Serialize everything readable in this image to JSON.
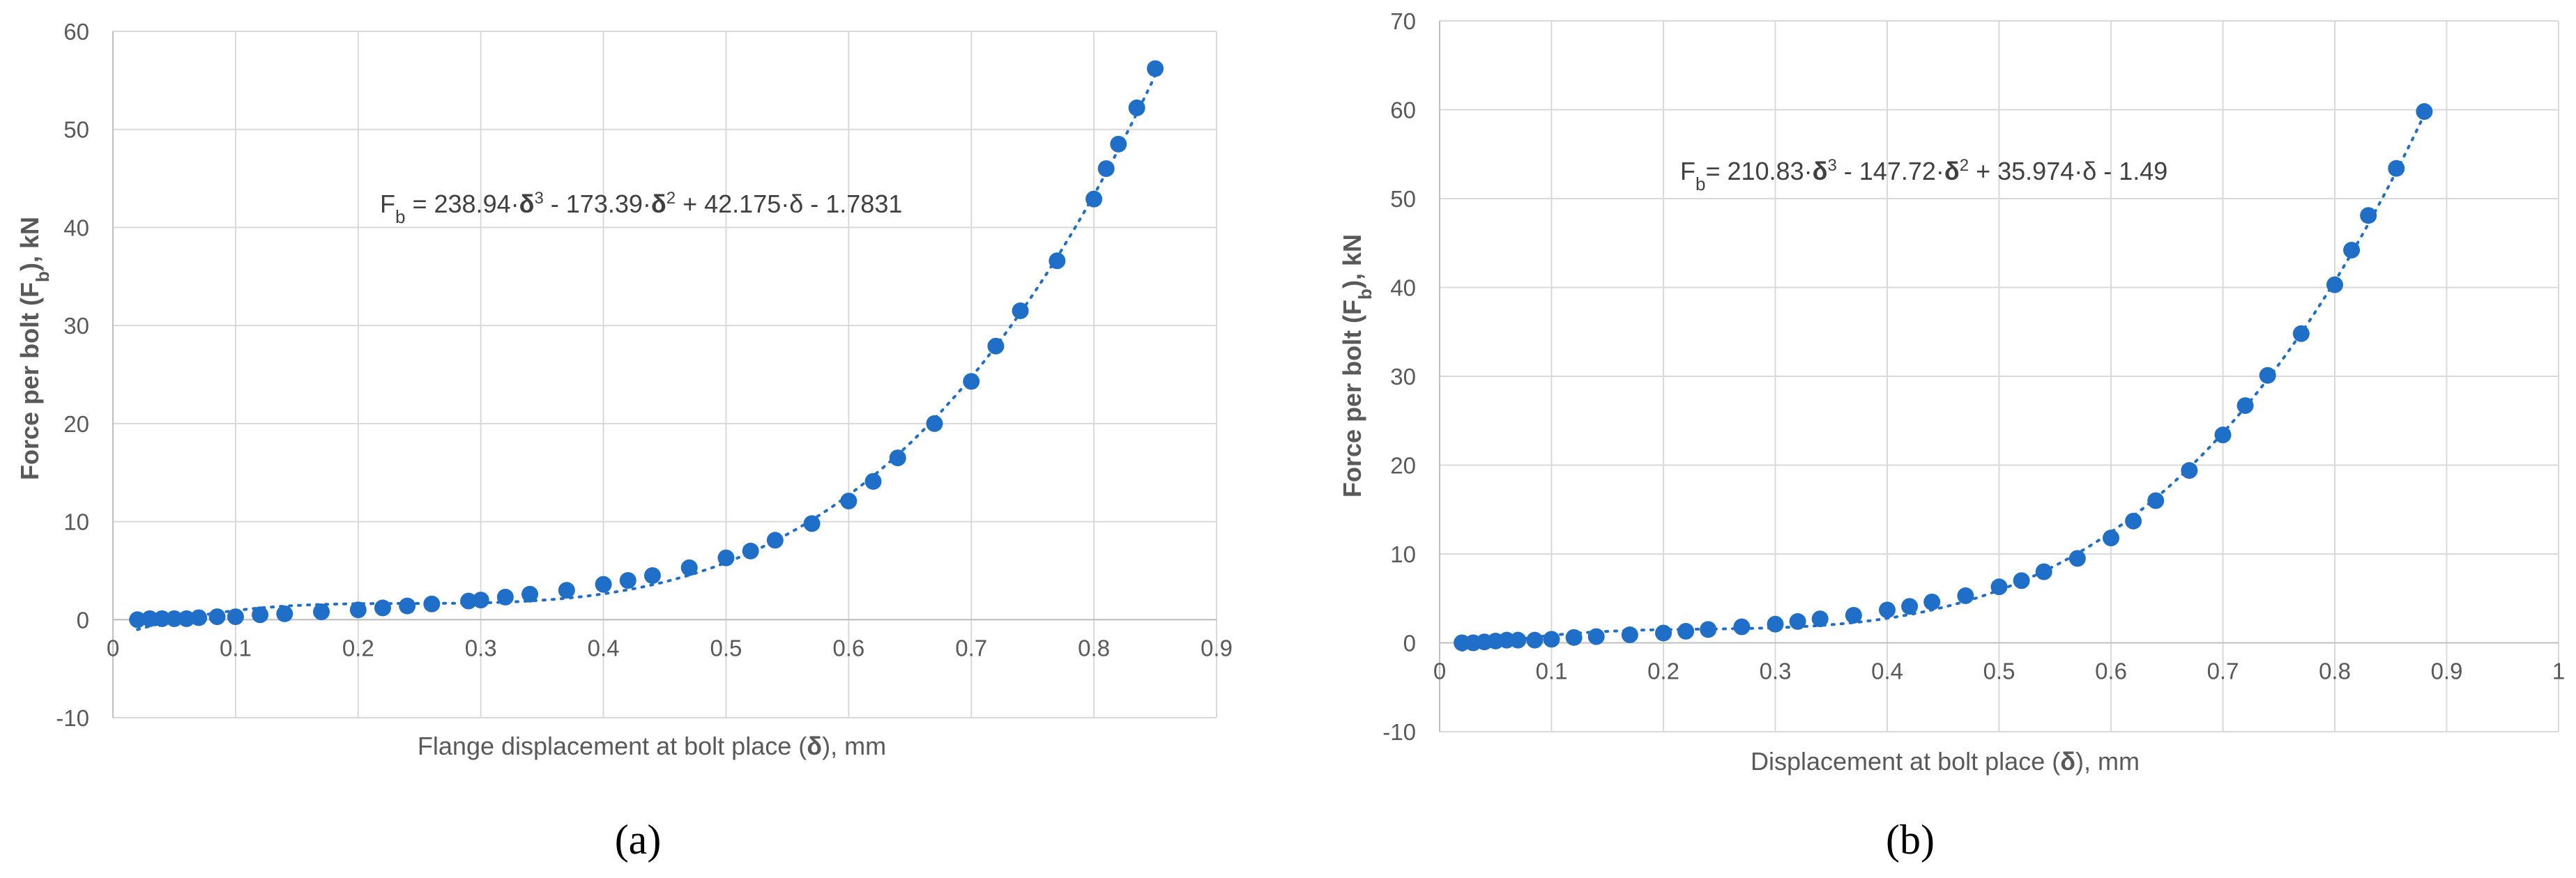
{
  "chart_data": [
    {
      "type": "scatter",
      "panel_label": "(a)",
      "xlabel": "Flange displacement at bolt place (δ), mm",
      "ylabel": "Force per bolt (Fb), kN",
      "xlim": [
        0,
        0.9
      ],
      "ylim": [
        -10,
        60
      ],
      "xticks": [
        "0",
        "0.1",
        "0.2",
        "0.3",
        "0.4",
        "0.5",
        "0.6",
        "0.7",
        "0.8",
        "0.9"
      ],
      "yticks": [
        "-10",
        "0",
        "10",
        "20",
        "30",
        "40",
        "50",
        "60"
      ],
      "grid": true,
      "trendline": {
        "style": "dotted",
        "coefficients": [
          238.94,
          -173.39,
          42.175,
          -1.7831
        ]
      },
      "equation": "Fb = 238.94·δ3 - 173.39·δ2 + 42.175·δ - 1.7831",
      "color": "#1f6fc8",
      "x": [
        0.02,
        0.03,
        0.04,
        0.05,
        0.06,
        0.07,
        0.085,
        0.1,
        0.12,
        0.14,
        0.17,
        0.2,
        0.22,
        0.24,
        0.26,
        0.29,
        0.3,
        0.32,
        0.34,
        0.37,
        0.4,
        0.42,
        0.44,
        0.47,
        0.5,
        0.52,
        0.54,
        0.57,
        0.6,
        0.62,
        0.64,
        0.67,
        0.7,
        0.72,
        0.74,
        0.77,
        0.8,
        0.81,
        0.82,
        0.835,
        0.85
      ],
      "y": [
        0,
        0.1,
        0.1,
        0.1,
        0.1,
        0.2,
        0.3,
        0.3,
        0.5,
        0.6,
        0.8,
        1.0,
        1.2,
        1.4,
        1.6,
        1.9,
        2.0,
        2.3,
        2.6,
        3.0,
        3.6,
        4.0,
        4.5,
        5.3,
        6.3,
        7.0,
        8.1,
        9.8,
        12.1,
        14.1,
        16.5,
        20.0,
        24.3,
        27.9,
        31.5,
        36.6,
        42.9,
        46.0,
        48.5,
        52.2,
        56.2
      ]
    },
    {
      "type": "scatter",
      "panel_label": "(b)",
      "xlabel": "Displacement at bolt place (δ), mm",
      "ylabel": "Force per bolt (Fb), kN",
      "xlim": [
        0,
        1
      ],
      "ylim": [
        -10,
        70
      ],
      "xticks": [
        "0",
        "0.1",
        "0.2",
        "0.3",
        "0.4",
        "0.5",
        "0.6",
        "0.7",
        "0.8",
        "0.9",
        "1"
      ],
      "yticks": [
        "-10",
        "0",
        "10",
        "20",
        "30",
        "40",
        "50",
        "60",
        "70"
      ],
      "grid": true,
      "trendline": {
        "style": "dotted",
        "coefficients": [
          210.83,
          -147.72,
          35.974,
          -1.49
        ]
      },
      "equation": "Fb= 210.83·δ3 - 147.72·δ2 + 35.974·δ - 1.49",
      "color": "#1f6fc8",
      "x": [
        0.02,
        0.03,
        0.04,
        0.05,
        0.06,
        0.07,
        0.085,
        0.1,
        0.12,
        0.14,
        0.17,
        0.2,
        0.22,
        0.24,
        0.27,
        0.3,
        0.32,
        0.34,
        0.37,
        0.4,
        0.42,
        0.44,
        0.47,
        0.5,
        0.52,
        0.54,
        0.57,
        0.6,
        0.62,
        0.64,
        0.67,
        0.7,
        0.72,
        0.74,
        0.77,
        0.8,
        0.815,
        0.83,
        0.855,
        0.88
      ],
      "y": [
        0,
        0,
        0.1,
        0.2,
        0.3,
        0.3,
        0.3,
        0.4,
        0.6,
        0.7,
        0.9,
        1.1,
        1.3,
        1.5,
        1.8,
        2.1,
        2.4,
        2.7,
        3.1,
        3.7,
        4.1,
        4.6,
        5.3,
        6.3,
        7.0,
        8.0,
        9.5,
        11.8,
        13.7,
        16.0,
        19.4,
        23.4,
        26.7,
        30.1,
        34.8,
        40.3,
        44.2,
        48.1,
        53.4,
        59.8
      ]
    }
  ]
}
